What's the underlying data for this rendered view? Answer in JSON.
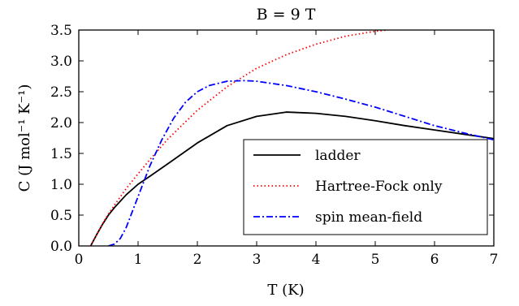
{
  "chart_data": {
    "type": "line",
    "title": "B = 9 T",
    "xlabel": "T (K)",
    "ylabel": "C (J mol⁻¹ K⁻¹)",
    "xlim": [
      0,
      7
    ],
    "ylim": [
      0,
      3.5
    ],
    "xticks": [
      "0",
      "1",
      "2",
      "3",
      "4",
      "5",
      "6",
      "7"
    ],
    "yticks": [
      "0.0",
      "0.5",
      "1.0",
      "1.5",
      "2.0",
      "2.5",
      "3.0",
      "3.5"
    ],
    "grid": false,
    "legend_position": "lower-right",
    "series": [
      {
        "name": "ladder",
        "color": "#000000",
        "style": "solid",
        "x": [
          0.2,
          0.3,
          0.4,
          0.5,
          0.6,
          0.8,
          1.0,
          1.2,
          1.5,
          2.0,
          2.5,
          3.0,
          3.5,
          4.0,
          4.5,
          5.0,
          5.5,
          6.0,
          6.5,
          7.0
        ],
        "y": [
          0.0,
          0.18,
          0.35,
          0.5,
          0.62,
          0.83,
          1.0,
          1.13,
          1.33,
          1.67,
          1.95,
          2.1,
          2.17,
          2.15,
          2.1,
          2.03,
          1.95,
          1.88,
          1.81,
          1.74
        ]
      },
      {
        "name": "Hartree-Fock only",
        "color": "#ff0000",
        "style": "dotted",
        "x": [
          0.2,
          0.3,
          0.4,
          0.5,
          0.6,
          0.8,
          1.0,
          1.2,
          1.5,
          2.0,
          2.5,
          3.0,
          3.5,
          4.0,
          4.5,
          5.0,
          5.2
        ],
        "y": [
          0.0,
          0.18,
          0.36,
          0.52,
          0.66,
          0.93,
          1.17,
          1.4,
          1.73,
          2.2,
          2.58,
          2.88,
          3.1,
          3.27,
          3.4,
          3.48,
          3.5
        ]
      },
      {
        "name": "spin mean-field",
        "color": "#0000ff",
        "style": "dashdot",
        "x": [
          0.5,
          0.6,
          0.7,
          0.8,
          0.9,
          1.0,
          1.1,
          1.2,
          1.4,
          1.6,
          1.8,
          2.0,
          2.2,
          2.5,
          2.8,
          3.0,
          3.5,
          4.0,
          4.5,
          5.0,
          5.5,
          6.0,
          6.5,
          7.0
        ],
        "y": [
          0.0,
          0.03,
          0.12,
          0.3,
          0.55,
          0.8,
          1.05,
          1.3,
          1.72,
          2.07,
          2.33,
          2.5,
          2.6,
          2.67,
          2.68,
          2.67,
          2.6,
          2.5,
          2.38,
          2.25,
          2.1,
          1.95,
          1.83,
          1.72
        ]
      }
    ]
  }
}
